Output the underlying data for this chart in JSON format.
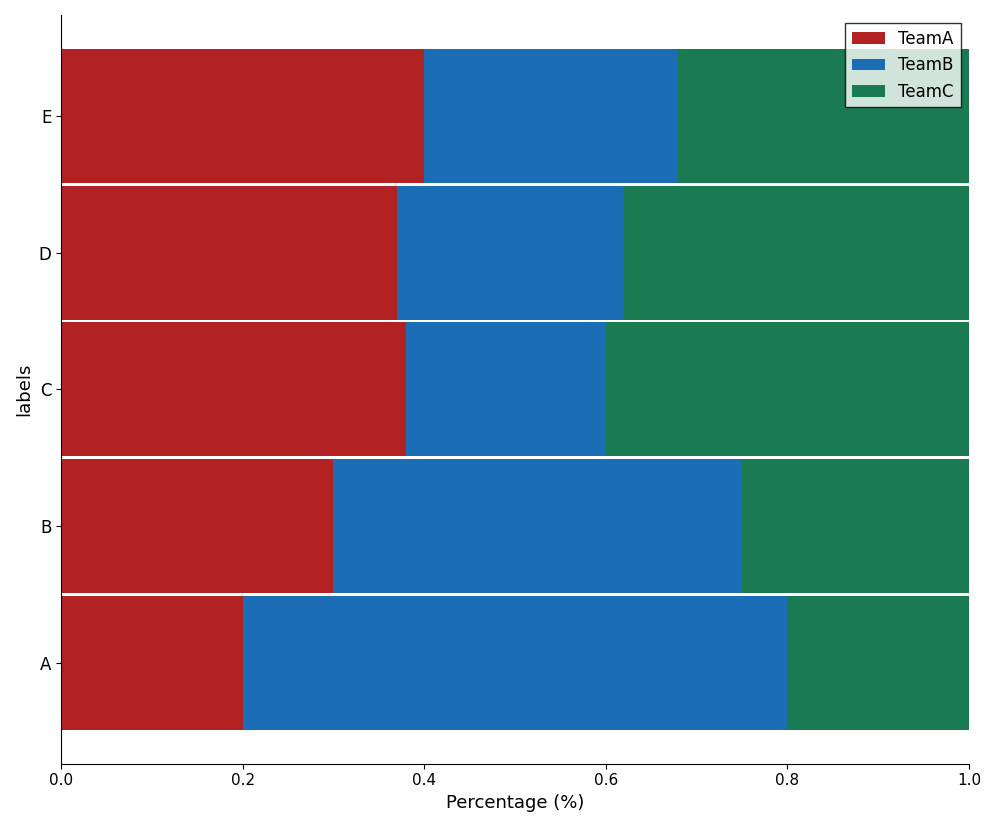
{
  "categories": [
    "A",
    "B",
    "C",
    "D",
    "E"
  ],
  "teamA": [
    0.2,
    0.3,
    0.38,
    0.37,
    0.4
  ],
  "teamB": [
    0.6,
    0.45,
    0.22,
    0.25,
    0.28
  ],
  "teamC": [
    0.2,
    0.25,
    0.4,
    0.38,
    0.32
  ],
  "colors": {
    "TeamA": "#b22222",
    "TeamB": "#1b6eb5",
    "TeamC": "#1a7a52"
  },
  "xlabel": "Percentage (%)",
  "ylabel": "labels",
  "legend_labels": [
    "TeamA",
    "TeamB",
    "TeamC"
  ],
  "xlim": [
    0.0,
    1.0
  ],
  "xticks": [
    0.0,
    0.2,
    0.4,
    0.6,
    0.8,
    1.0
  ]
}
